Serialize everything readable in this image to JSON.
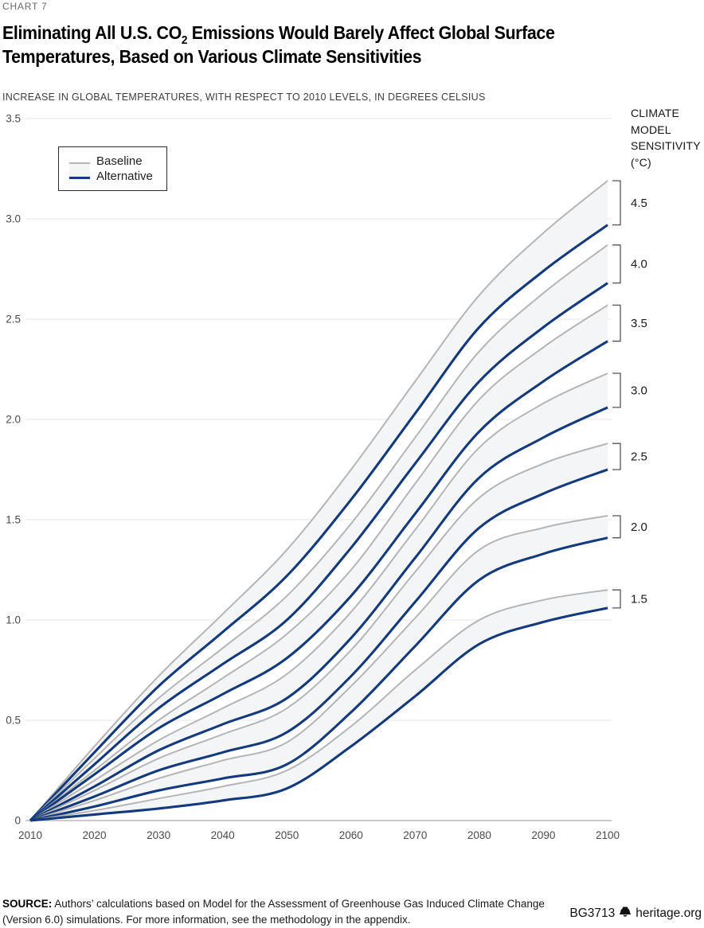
{
  "header": {
    "kicker": "CHART 7",
    "title_line1_pre": "Eliminating All U.S. CO",
    "title_line1_sub": "2",
    "title_line1_post": " Emissions Would Barely Affect Global Surface",
    "title_line2": "Temperatures, Based on Various Climate Sensitivities",
    "subtitle": "INCREASE IN GLOBAL TEMPERATURES, WITH RESPECT TO 2010 LEVELS, IN DEGREES CELSIUS"
  },
  "legend": {
    "baseline_label": "Baseline",
    "alternative_label": "Alternative"
  },
  "sensitivity_panel": {
    "header_lines": [
      "CLIMATE",
      "MODEL",
      "SENSITIVITY",
      "(°C)"
    ]
  },
  "footer": {
    "source_label": "SOURCE:",
    "source_text": " Authors’ calculations based on Model for the Assessment of Greenhouse Gas Induced Climate Change (Version 6.0) simulations. For more information, see the methodology in the appendix.",
    "doc_id": "BG3713",
    "site": "heritage.org",
    "logo": "liberty-bell-icon"
  },
  "colors": {
    "baseline_line": "#b5b5b5",
    "alternative_line": "#123a7c",
    "pair_band_fill": "#f4f5f6",
    "gridline": "#e6e6e6",
    "axis_line": "#ababab",
    "tick_text": "#4a4a4a",
    "bracket": "#555555",
    "sensitivity_text": "#1a1a1a"
  },
  "chart_data": {
    "type": "line",
    "title": "Eliminating All U.S. CO2 Emissions Would Barely Affect Global Surface Temperatures, Based on Various Climate Sensitivities",
    "ylabel": "Increase in global temperatures, with respect to 2010 levels, in degrees Celsius",
    "xlabel": "",
    "x": [
      2010,
      2020,
      2030,
      2040,
      2050,
      2060,
      2070,
      2080,
      2090,
      2100
    ],
    "x_tick_labels": [
      "2010",
      "2020",
      "2030",
      "2040",
      "2050",
      "2060",
      "2070",
      "2080",
      "2090",
      "2100"
    ],
    "xlim": [
      2010,
      2100
    ],
    "ylim": [
      0,
      3.5
    ],
    "y_ticks": [
      0,
      0.5,
      1.0,
      1.5,
      2.0,
      2.5,
      3.0,
      3.5
    ],
    "y_tick_labels": [
      "0",
      "0.5",
      "1.0",
      "1.5",
      "2.0",
      "2.5",
      "3.0",
      "3.5"
    ],
    "grid": "horizontal",
    "legend_position": "top-left",
    "series_pairs": [
      {
        "sensitivity": "4.5",
        "baseline": [
          0,
          0.37,
          0.72,
          1.03,
          1.35,
          1.75,
          2.19,
          2.62,
          2.93,
          3.19
        ],
        "alternative": [
          0,
          0.34,
          0.67,
          0.94,
          1.22,
          1.6,
          2.03,
          2.46,
          2.74,
          2.97
        ]
      },
      {
        "sensitivity": "4.0",
        "baseline": [
          0,
          0.31,
          0.61,
          0.86,
          1.12,
          1.48,
          1.91,
          2.34,
          2.63,
          2.87
        ],
        "alternative": [
          0,
          0.28,
          0.56,
          0.78,
          1.0,
          1.36,
          1.78,
          2.19,
          2.46,
          2.68
        ]
      },
      {
        "sensitivity": "3.5",
        "baseline": [
          0,
          0.25,
          0.5,
          0.71,
          0.93,
          1.25,
          1.68,
          2.1,
          2.36,
          2.57
        ],
        "alternative": [
          0,
          0.23,
          0.46,
          0.63,
          0.81,
          1.12,
          1.53,
          1.94,
          2.19,
          2.39
        ]
      },
      {
        "sensitivity": "3.0",
        "baseline": [
          0,
          0.2,
          0.4,
          0.56,
          0.73,
          1.04,
          1.45,
          1.86,
          2.08,
          2.23
        ],
        "alternative": [
          0,
          0.17,
          0.35,
          0.48,
          0.61,
          0.91,
          1.31,
          1.71,
          1.91,
          2.06
        ]
      },
      {
        "sensitivity": "2.5",
        "baseline": [
          0,
          0.15,
          0.31,
          0.43,
          0.56,
          0.85,
          1.24,
          1.61,
          1.78,
          1.88
        ],
        "alternative": [
          0,
          0.12,
          0.25,
          0.34,
          0.44,
          0.72,
          1.09,
          1.46,
          1.63,
          1.75
        ]
      },
      {
        "sensitivity": "2.0",
        "baseline": [
          0,
          0.1,
          0.21,
          0.3,
          0.39,
          0.67,
          1.01,
          1.35,
          1.46,
          1.52
        ],
        "alternative": [
          0,
          0.07,
          0.15,
          0.21,
          0.28,
          0.54,
          0.87,
          1.2,
          1.33,
          1.41
        ]
      },
      {
        "sensitivity": "1.5",
        "baseline": [
          0,
          0.05,
          0.11,
          0.17,
          0.25,
          0.47,
          0.75,
          1.0,
          1.1,
          1.15
        ],
        "alternative": [
          0,
          0.03,
          0.06,
          0.1,
          0.16,
          0.37,
          0.62,
          0.88,
          0.99,
          1.06
        ]
      }
    ]
  }
}
